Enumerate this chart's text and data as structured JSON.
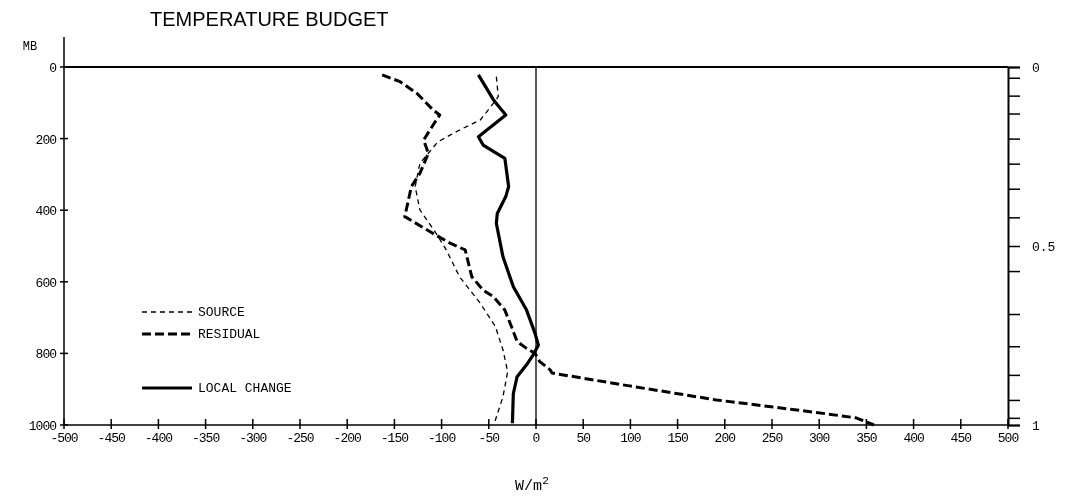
{
  "chart_data": {
    "type": "line",
    "title": "TEMPERATURE BUDGET",
    "xlabel": "W/m$^{2}$",
    "ylabel": "MB",
    "xlim": [
      -500,
      500
    ],
    "xticks": [
      -500,
      -450,
      -400,
      -350,
      -300,
      -250,
      -200,
      -150,
      -100,
      -50,
      0,
      50,
      100,
      150,
      200,
      250,
      300,
      350,
      400,
      450,
      500
    ],
    "ylim": [
      1000,
      0
    ],
    "yticks": [
      0,
      200,
      400,
      600,
      800,
      1000
    ],
    "y2lim": [
      1,
      0
    ],
    "y2ticks": [
      {
        "value": 0,
        "label": "0"
      },
      {
        "value": 0.03,
        "label": null
      },
      {
        "value": 0.08,
        "label": null
      },
      {
        "value": 0.13,
        "label": null
      },
      {
        "value": 0.2,
        "label": null
      },
      {
        "value": 0.27,
        "label": null
      },
      {
        "value": 0.34,
        "label": null
      },
      {
        "value": 0.42,
        "label": null
      },
      {
        "value": 0.5,
        "label": "0.5"
      },
      {
        "value": 0.57,
        "label": null
      },
      {
        "value": 0.69,
        "label": null
      },
      {
        "value": 0.78,
        "label": null
      },
      {
        "value": 0.86,
        "label": null
      },
      {
        "value": 0.93,
        "label": null
      },
      {
        "value": 0.98,
        "label": null
      },
      {
        "value": 1,
        "label": "1"
      }
    ],
    "ref_lines": [
      {
        "axis": "x",
        "value": 0,
        "color": "#000000",
        "line_style": "solid"
      }
    ],
    "grid": false,
    "legend": "bottom left",
    "marker": "none",
    "series": [
      {
        "name": "SOURCE",
        "color": "#000000",
        "line_style": "dashed",
        "x": [
          -42,
          -40,
          -45,
          -59,
          -81,
          -104,
          -114,
          -123,
          -128,
          -123,
          -107,
          -95,
          -81,
          -59,
          -43,
          -35,
          -30,
          -35,
          -43,
          -45
        ],
        "values": [
          27,
          83,
          101,
          148,
          176,
          209,
          241,
          269,
          334,
          399,
          460,
          511,
          586,
          660,
          725,
          790,
          851,
          921,
          986,
          995
        ]
      },
      {
        "name": "RESIDUAL",
        "color": "#000000",
        "line_style": "dashed",
        "x": [
          -163,
          -144,
          -126,
          -109,
          -102,
          -109,
          -119,
          -114,
          -123,
          -132,
          -139,
          -130,
          -109,
          -91,
          -75,
          -68,
          -56,
          -45,
          -33,
          -26,
          -20,
          -10,
          -1,
          4,
          15,
          17,
          97,
          191,
          297,
          339,
          358
        ],
        "values": [
          22,
          41,
          74,
          120,
          134,
          162,
          204,
          241,
          297,
          334,
          418,
          432,
          465,
          492,
          511,
          586,
          623,
          642,
          679,
          725,
          767,
          786,
          800,
          823,
          846,
          855,
          890,
          930,
          965,
          980,
          1000
        ]
      },
      {
        "name": "LOCAL CHANGE",
        "color": "#000000",
        "line_style": "solid",
        "x": [
          -61,
          -45,
          -32,
          -61,
          -56,
          -33,
          -29,
          -32,
          -41,
          -42,
          -35,
          -24,
          -10,
          -1,
          2.5,
          -3,
          -10,
          -20,
          -24,
          -25
        ],
        "values": [
          22,
          92,
          134,
          195,
          218,
          255,
          334,
          362,
          409,
          437,
          530,
          614,
          679,
          744,
          777,
          804,
          832,
          865,
          912,
          995
        ]
      }
    ]
  }
}
